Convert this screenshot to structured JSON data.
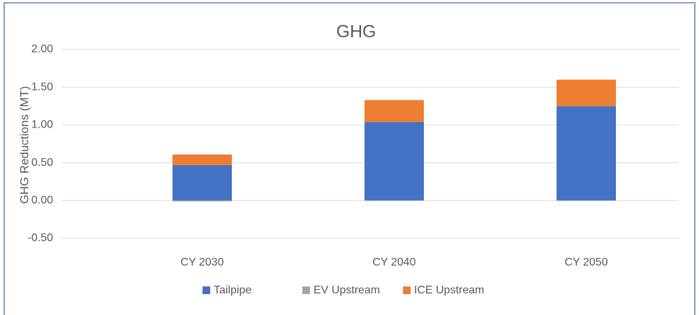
{
  "chart_data": {
    "type": "stacked_bar",
    "title": "GHG",
    "ylabel": "GHG Reductions (MT)",
    "categories": [
      "CY 2030",
      "CY 2040",
      "CY 2050"
    ],
    "series": [
      {
        "name": "Tailpipe",
        "color": "#4472c4",
        "values": [
          0.47,
          1.04,
          1.25
        ]
      },
      {
        "name": "EV Upstream",
        "color": "#a5a5a5",
        "values": [
          -0.01,
          0,
          0
        ]
      },
      {
        "name": "ICE Upstream",
        "color": "#ed7d31",
        "values": [
          0.14,
          0.29,
          0.35
        ]
      }
    ],
    "ylim": [
      -0.5,
      2
    ],
    "yticks": [
      {
        "value": -0.5,
        "label": "-0.50"
      },
      {
        "value": 0,
        "label": "0.00"
      },
      {
        "value": 0.5,
        "label": "0.50"
      },
      {
        "value": 1,
        "label": "1.00"
      },
      {
        "value": 1.5,
        "label": "1.50"
      },
      {
        "value": 2,
        "label": "2.00"
      }
    ],
    "grid": true,
    "legend": "bottom"
  }
}
